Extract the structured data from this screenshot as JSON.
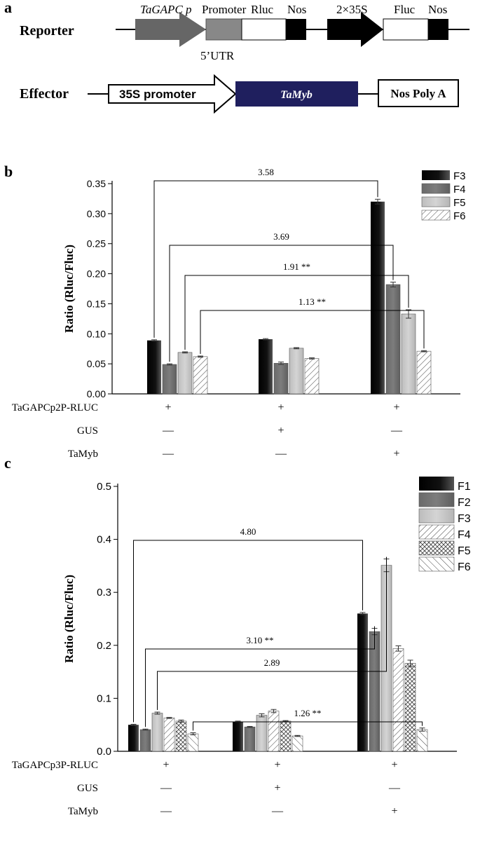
{
  "panel_a": {
    "label": "a",
    "reporter": {
      "label": "Reporter",
      "promoter_italic": "TaGAPC p",
      "promoter_text": "Promoter",
      "rluc": "Rluc",
      "nos1": "Nos",
      "p35s": "2×35S",
      "fluc": "Fluc",
      "nos2": "Nos",
      "utr": "5’UTR"
    },
    "effector": {
      "label": "Effector",
      "promoter": "35S promoter",
      "gene": "TaMyb",
      "polya": "Nos Poly A"
    }
  },
  "colors": {
    "black": "#000000",
    "dark_gray": "#7a7a7a",
    "light_gray": "#c8c8c8",
    "navy": "#1f1f5e",
    "white": "#ffffff"
  },
  "chart_data": [
    {
      "panel": "b",
      "type": "bar",
      "ylabel": "Ratio (Rluc/Fluc)",
      "ylim": [
        0,
        0.35
      ],
      "yticks": [
        "0.00",
        "0.05",
        "0.10",
        "0.15",
        "0.20",
        "0.25",
        "0.30",
        "0.35"
      ],
      "groups": 3,
      "series": [
        {
          "name": "F3",
          "pattern": "black",
          "values": [
            0.089,
            0.091,
            0.32
          ],
          "errors": [
            0.001,
            0.001,
            0.004
          ]
        },
        {
          "name": "F4",
          "pattern": "dark",
          "values": [
            0.049,
            0.051,
            0.182
          ],
          "errors": [
            0.001,
            0.002,
            0.004
          ]
        },
        {
          "name": "F5",
          "pattern": "light",
          "values": [
            0.069,
            0.076,
            0.133
          ],
          "errors": [
            0.001,
            0.001,
            0.007
          ]
        },
        {
          "name": "F6",
          "pattern": "hatch",
          "values": [
            0.062,
            0.059,
            0.071
          ],
          "errors": [
            0.001,
            0.001,
            0.001
          ]
        }
      ],
      "annotations": [
        {
          "text": "3.58",
          "series": 0
        },
        {
          "text": "3.69",
          "series": 1
        },
        {
          "text": "1.91 **",
          "series": 2
        },
        {
          "text": "1.13 **",
          "series": 3
        }
      ],
      "conditions": [
        {
          "label": "TaGAPCp2P-RLUC",
          "marks": [
            "+",
            "+",
            "+"
          ]
        },
        {
          "label": "GUS",
          "marks": [
            "—",
            "+",
            "—"
          ]
        },
        {
          "label": "TaMyb",
          "marks": [
            "—",
            "—",
            "+"
          ]
        }
      ]
    },
    {
      "panel": "c",
      "type": "bar",
      "ylabel": "Ratio (Rluc/Fluc)",
      "ylim": [
        0,
        0.5
      ],
      "yticks": [
        "0.0",
        "0.1",
        "0.2",
        "0.3",
        "0.4",
        "0.5"
      ],
      "groups": 3,
      "series": [
        {
          "name": "F1",
          "pattern": "black",
          "values": [
            0.05,
            0.056,
            0.26
          ],
          "errors": [
            0.001,
            0.001,
            0.002
          ]
        },
        {
          "name": "F2",
          "pattern": "dark",
          "values": [
            0.041,
            0.046,
            0.226
          ],
          "errors": [
            0.001,
            0.001,
            0.006
          ]
        },
        {
          "name": "F3",
          "pattern": "light",
          "values": [
            0.072,
            0.068,
            0.351
          ],
          "errors": [
            0.002,
            0.003,
            0.012
          ]
        },
        {
          "name": "F4",
          "pattern": "hatch",
          "values": [
            0.063,
            0.076,
            0.194
          ],
          "errors": [
            0.001,
            0.003,
            0.005
          ]
        },
        {
          "name": "F5",
          "pattern": "cross",
          "values": [
            0.057,
            0.057,
            0.166
          ],
          "errors": [
            0.002,
            0.001,
            0.006
          ]
        },
        {
          "name": "F6",
          "pattern": "hatch2",
          "values": [
            0.033,
            0.029,
            0.041
          ],
          "errors": [
            0.002,
            0.001,
            0.003
          ]
        }
      ],
      "annotations": [
        {
          "text": "4.80",
          "series": 0
        },
        {
          "text": "3.10 **",
          "series": 1
        },
        {
          "text": "2.89",
          "series": 2
        },
        {
          "text": "1.26 **",
          "series": 5
        }
      ],
      "conditions": [
        {
          "label": "TaGAPCp3P-RLUC",
          "marks": [
            "+",
            "+",
            "+"
          ]
        },
        {
          "label": "GUS",
          "marks": [
            "—",
            "+",
            "—"
          ]
        },
        {
          "label": "TaMyb",
          "marks": [
            "—",
            "—",
            "+"
          ]
        }
      ]
    }
  ],
  "panel_labels": {
    "b": "b",
    "c": "c"
  }
}
